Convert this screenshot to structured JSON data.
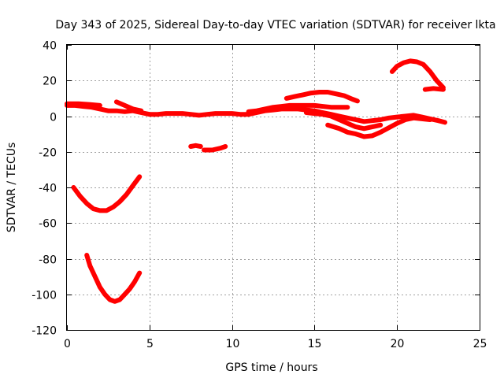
{
  "chart_data": {
    "type": "line",
    "title": "Day 343 of 2025, Sidereal Day-to-day VTEC variation (SDTVAR) for receiver lkta",
    "xlabel": "GPS time / hours",
    "ylabel": "SDTVAR / TECUs",
    "xlim": [
      0,
      25
    ],
    "ylim": [
      -120,
      40
    ],
    "xticks": [
      0,
      5,
      10,
      15,
      20,
      25
    ],
    "yticks": [
      -120,
      -100,
      -80,
      -60,
      -40,
      -20,
      0,
      20,
      40
    ],
    "grid": true,
    "legend": "none",
    "color": "#ff0000",
    "series": [
      {
        "name": "trace-1",
        "x": [
          0.0,
          0.5,
          1.0,
          1.5,
          2.0,
          2.5,
          3.0,
          3.5,
          4.0,
          4.5,
          5.0,
          5.5,
          6.0,
          6.5,
          7.0,
          7.5,
          8.0,
          8.5,
          9.0,
          9.5,
          10.0,
          10.5,
          11.0,
          11.5,
          12.0,
          12.5,
          13.0,
          13.5,
          14.0,
          14.5,
          15.0,
          15.5,
          16.0,
          16.5,
          17.0,
          17.5,
          18.0,
          18.5,
          19.0,
          19.5,
          20.0,
          20.5,
          21.0,
          21.5,
          22.0,
          22.5,
          22.9
        ],
        "y": [
          6,
          6,
          5.5,
          5,
          4,
          3,
          3,
          2.5,
          3,
          2,
          1,
          1,
          1.5,
          1.5,
          1.5,
          1,
          0.5,
          1,
          1.5,
          1.5,
          1.5,
          1,
          1,
          2,
          3,
          3.5,
          4,
          4,
          4,
          3.5,
          3,
          2,
          1,
          0,
          -1,
          -2,
          -3,
          -2.5,
          -2,
          -1,
          -0.5,
          0,
          0.5,
          -0.5,
          -1.5,
          -2.5,
          -3.5
        ]
      },
      {
        "name": "trace-2",
        "x": [
          0.0,
          0.7,
          1.4,
          2.0
        ],
        "y": [
          7,
          7,
          6.5,
          6
        ]
      },
      {
        "name": "trace-3",
        "x": [
          3.0,
          3.5,
          4.0,
          4.5
        ],
        "y": [
          8,
          6,
          4,
          3
        ]
      },
      {
        "name": "trace-4",
        "x": [
          11.0,
          11.5,
          12.0,
          12.5,
          13.0,
          13.5,
          14.0,
          14.5,
          15.0,
          15.5,
          16.0,
          16.5,
          17.0
        ],
        "y": [
          2.5,
          3,
          4,
          5,
          5.5,
          6,
          6,
          6,
          6,
          5.5,
          5,
          5,
          5
        ]
      },
      {
        "name": "trace-5",
        "x": [
          13.3,
          13.8,
          14.3,
          14.8,
          15.3,
          15.8,
          16.3,
          16.8,
          17.3,
          17.6
        ],
        "y": [
          10,
          11,
          12,
          13,
          13.5,
          13.5,
          12.5,
          11.5,
          9.5,
          8.5
        ]
      },
      {
        "name": "trace-6",
        "x": [
          14.5,
          15.0,
          15.5,
          16.0,
          16.5,
          17.0,
          17.5,
          18.0,
          18.5,
          19.0
        ],
        "y": [
          2,
          1.5,
          1,
          0,
          -2,
          -4,
          -6,
          -7,
          -6,
          -5
        ]
      },
      {
        "name": "trace-7",
        "x": [
          15.8,
          16.5,
          17.0,
          17.5,
          18.0,
          18.5,
          19.0,
          19.5,
          20.0,
          20.5,
          21.0,
          21.5,
          22.0
        ],
        "y": [
          -5,
          -7,
          -9,
          -10,
          -11.5,
          -11,
          -9,
          -6.5,
          -4,
          -2,
          -1,
          -1.5,
          -2
        ]
      },
      {
        "name": "trace-8",
        "x": [
          19.7,
          20.0,
          20.4,
          20.8,
          21.2,
          21.6,
          22.0,
          22.4,
          22.8
        ],
        "y": [
          25,
          28,
          30,
          31,
          30.5,
          29,
          25,
          20,
          16
        ]
      },
      {
        "name": "trace-9",
        "x": [
          21.7,
          22.2,
          22.8
        ],
        "y": [
          15,
          15.5,
          15
        ]
      },
      {
        "name": "trace-10",
        "x": [
          7.5,
          7.8,
          8.1
        ],
        "y": [
          -17,
          -16.5,
          -17
        ]
      },
      {
        "name": "trace-11",
        "x": [
          8.3,
          8.8,
          9.3,
          9.6
        ],
        "y": [
          -19,
          -19,
          -18,
          -17
        ]
      },
      {
        "name": "trace-12",
        "x": [
          0.4,
          0.8,
          1.2,
          1.6,
          2.0,
          2.4,
          2.8,
          3.2,
          3.6,
          4.0,
          4.4
        ],
        "y": [
          -40,
          -45,
          -49,
          -52,
          -53,
          -53,
          -51,
          -48,
          -44,
          -39,
          -34
        ]
      },
      {
        "name": "trace-13",
        "x": [
          1.2,
          1.4,
          1.7,
          2.0,
          2.3,
          2.6,
          2.9,
          3.2,
          3.5,
          3.8,
          4.1,
          4.4
        ],
        "y": [
          -78,
          -84,
          -90,
          -96,
          -100,
          -103,
          -104,
          -103,
          -100,
          -97,
          -93,
          -88
        ]
      }
    ]
  }
}
